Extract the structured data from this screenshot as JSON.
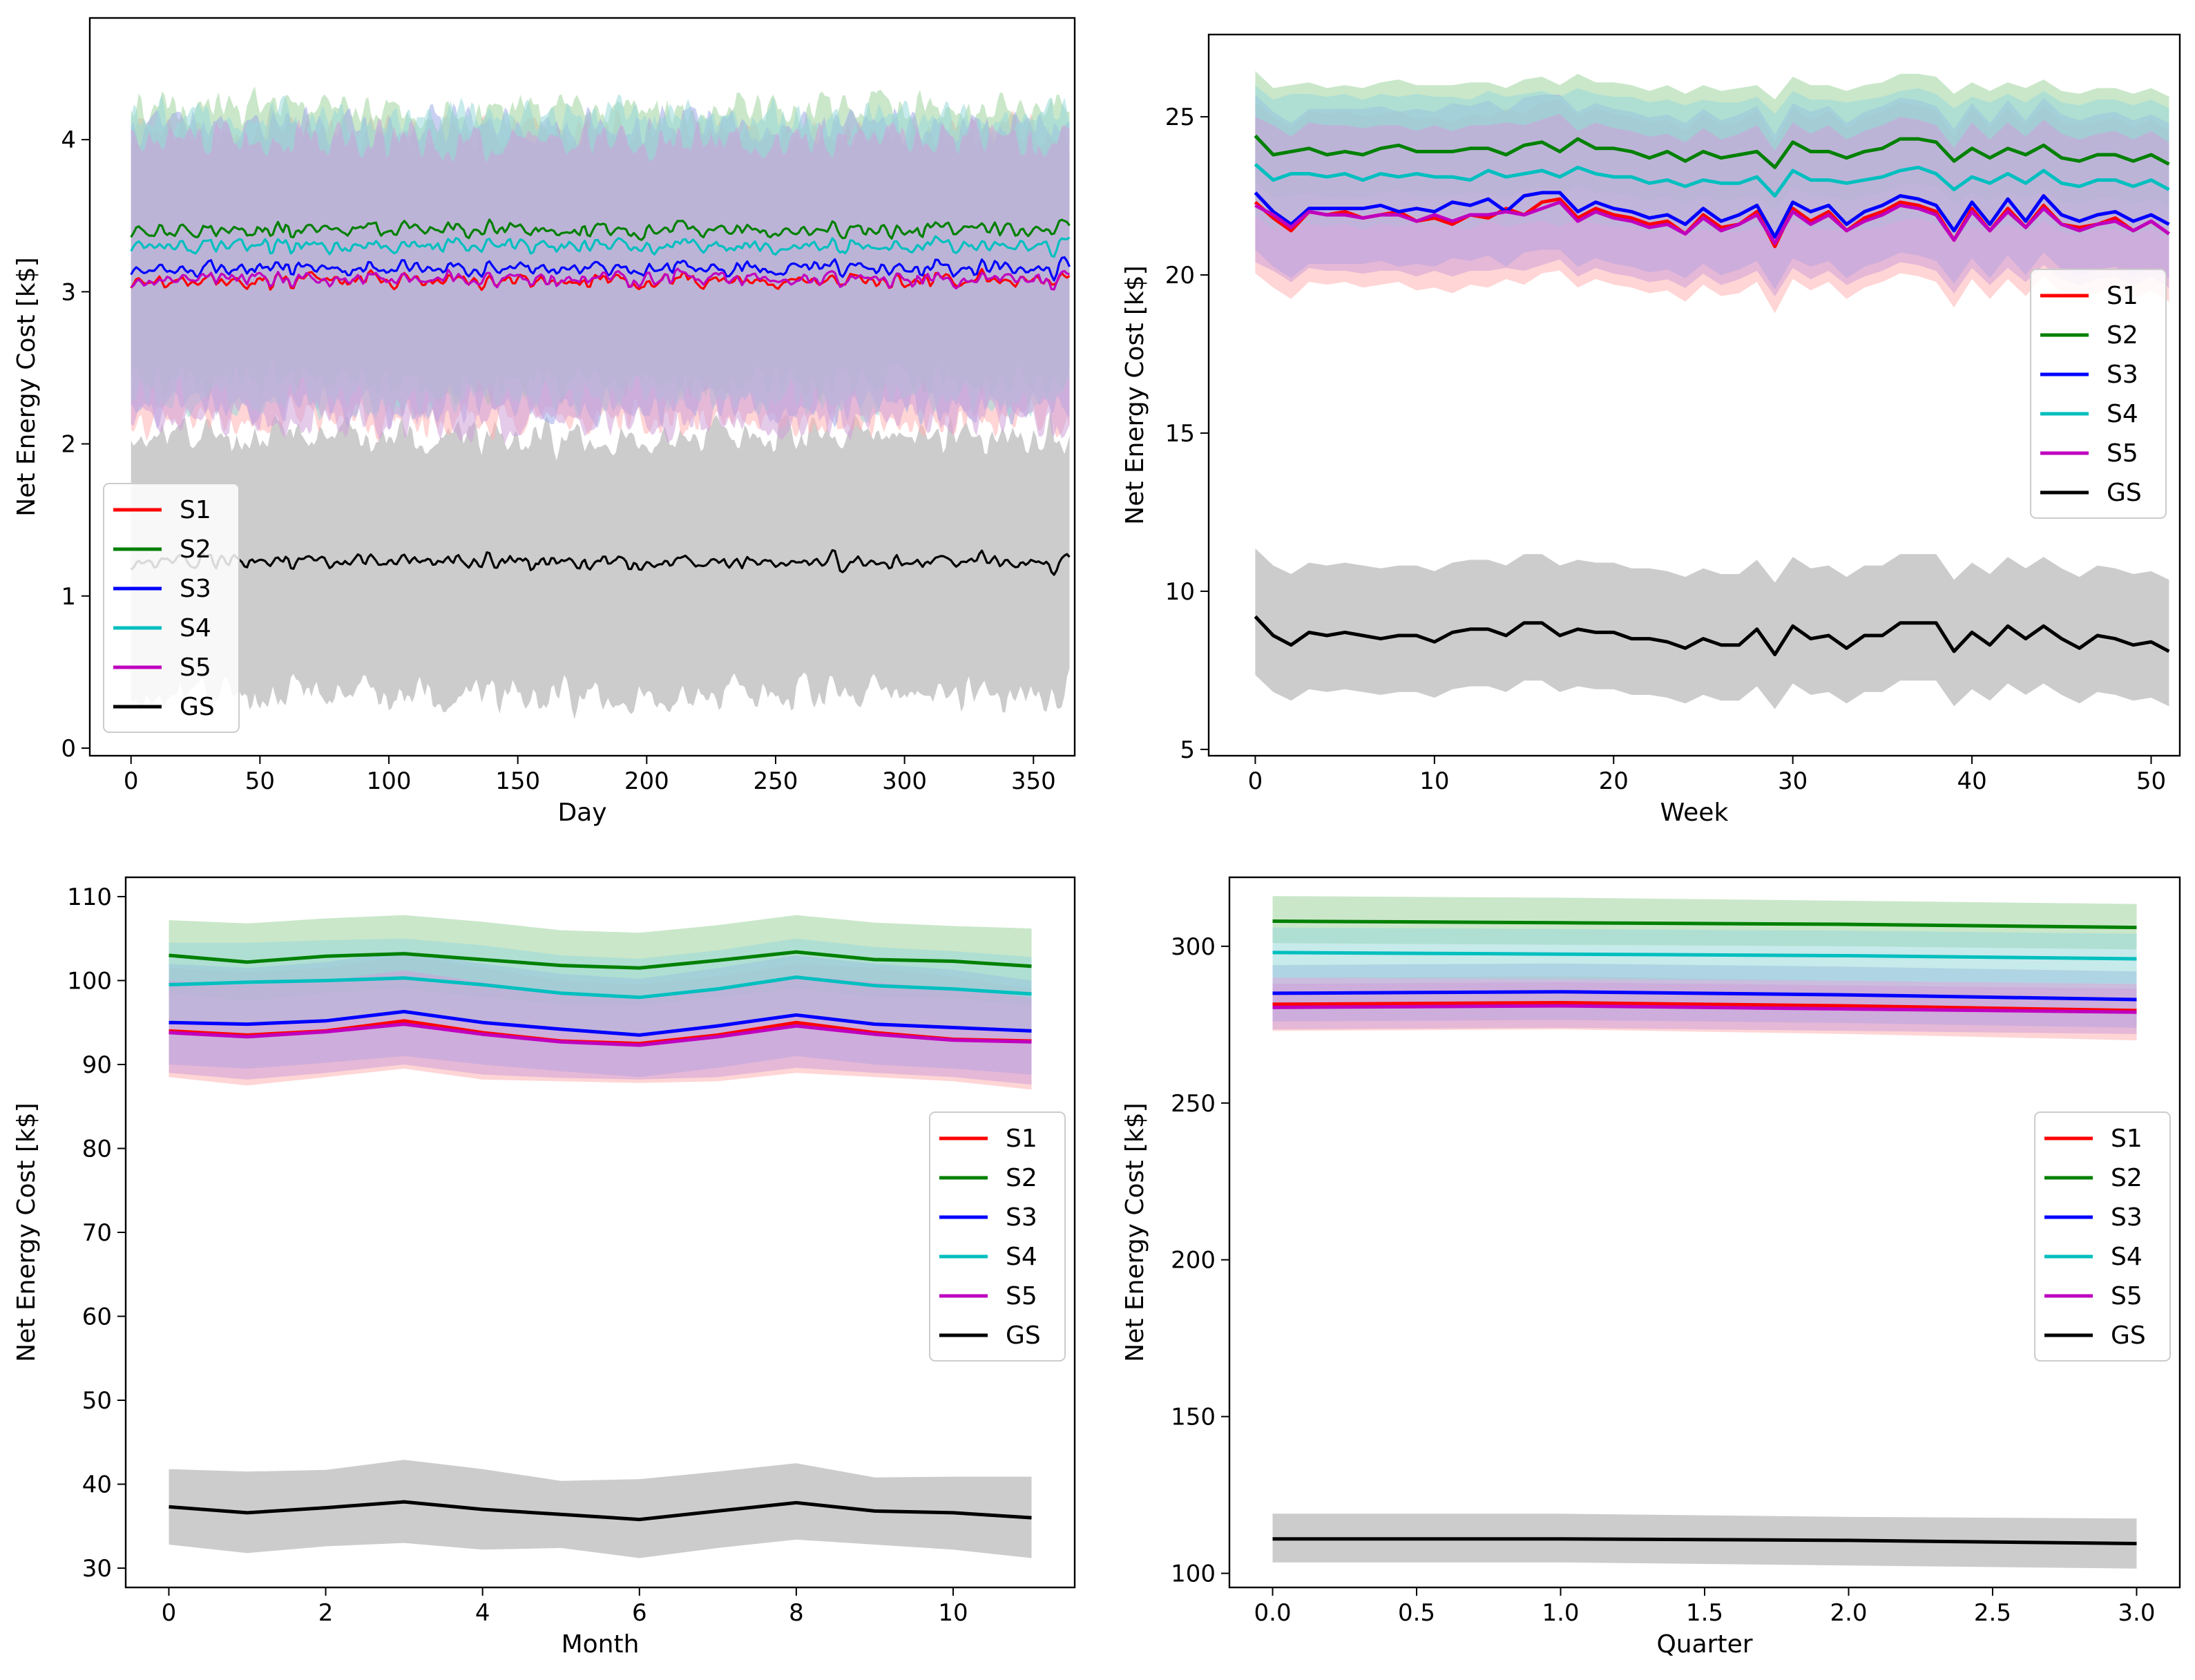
{
  "colors": {
    "S1": "#ff0000",
    "S2": "#008000",
    "S3": "#0000ff",
    "S4": "#00bfbf",
    "S5": "#bf00bf",
    "GS": "#000000",
    "band_S1": "#ffb3b3",
    "band_S2": "#9fd49f",
    "band_S3": "#9fa9e6",
    "band_S4": "#99d9d9",
    "band_S5": "#cfa0d8",
    "band_GS": "#cccccc"
  },
  "chart_data": [
    {
      "type": "line",
      "xlabel": "Day",
      "ylabel": "Net Energy Cost [k$]",
      "xlim": [
        -16,
        366
      ],
      "ylim": [
        -0.05,
        4.8
      ],
      "xticks": [
        0,
        50,
        100,
        150,
        200,
        250,
        300,
        350
      ],
      "yticks": [
        0,
        1,
        2,
        3,
        4
      ],
      "x_range": [
        0,
        364
      ],
      "legend_entries": [
        "S1",
        "S2",
        "S3",
        "S4",
        "S5",
        "GS"
      ],
      "legend_loc": "lower left",
      "series": [
        {
          "name": "S1",
          "mean": 3.07,
          "noise": 0.07,
          "band": [
            2.2,
            4.05
          ]
        },
        {
          "name": "S2",
          "mean": 3.4,
          "noise": 0.07,
          "band": [
            2.45,
            4.2
          ]
        },
        {
          "name": "S3",
          "mean": 3.15,
          "noise": 0.07,
          "band": [
            2.3,
            4.1
          ]
        },
        {
          "name": "S4",
          "mean": 3.3,
          "noise": 0.07,
          "band": [
            2.35,
            4.15
          ]
        },
        {
          "name": "S5",
          "mean": 3.08,
          "noise": 0.07,
          "band": [
            2.2,
            4.0
          ]
        },
        {
          "name": "GS",
          "mean": 1.22,
          "noise": 0.07,
          "band": [
            0.4,
            2.05
          ]
        }
      ]
    },
    {
      "type": "line",
      "xlabel": "Week",
      "ylabel": "Net Energy Cost [k$]",
      "xlim": [
        -2.6,
        51.6
      ],
      "ylim": [
        4.8,
        27.6
      ],
      "xticks": [
        0,
        10,
        20,
        30,
        40,
        50
      ],
      "yticks": [
        5,
        10,
        15,
        20,
        25
      ],
      "legend_entries": [
        "S1",
        "S2",
        "S3",
        "S4",
        "S5",
        "GS"
      ],
      "legend_loc": "center right",
      "x": [
        0,
        1,
        2,
        3,
        4,
        5,
        6,
        7,
        8,
        9,
        10,
        11,
        12,
        13,
        14,
        15,
        16,
        17,
        18,
        19,
        20,
        21,
        22,
        23,
        24,
        25,
        26,
        27,
        28,
        29,
        30,
        31,
        32,
        33,
        34,
        35,
        36,
        37,
        38,
        39,
        40,
        41,
        42,
        43,
        44,
        45,
        46,
        47,
        48,
        49,
        50,
        51
      ],
      "series": [
        {
          "name": "S1",
          "values": [
            22.3,
            21.8,
            21.4,
            22.0,
            21.9,
            22.0,
            21.8,
            21.9,
            22.0,
            21.7,
            21.8,
            21.6,
            21.9,
            21.8,
            22.1,
            21.9,
            22.3,
            22.4,
            21.8,
            22.1,
            21.9,
            21.8,
            21.6,
            21.7,
            21.3,
            21.9,
            21.5,
            21.6,
            22.0,
            20.9,
            22.1,
            21.7,
            22.0,
            21.4,
            21.8,
            22.0,
            22.3,
            22.2,
            22.0,
            21.1,
            22.1,
            21.4,
            22.1,
            21.5,
            22.2,
            21.6,
            21.5,
            21.6,
            21.8,
            21.4,
            21.7,
            21.3
          ],
          "band": [
            19.6,
            25.0
          ]
        },
        {
          "name": "S2",
          "values": [
            24.4,
            23.8,
            23.9,
            24.0,
            23.8,
            23.9,
            23.8,
            24.0,
            24.1,
            23.9,
            23.9,
            23.9,
            24.0,
            24.0,
            23.8,
            24.1,
            24.2,
            23.9,
            24.3,
            24.0,
            24.0,
            23.9,
            23.7,
            23.9,
            23.6,
            23.9,
            23.7,
            23.8,
            23.9,
            23.4,
            24.2,
            23.9,
            23.9,
            23.7,
            23.9,
            24.0,
            24.3,
            24.3,
            24.2,
            23.6,
            24.0,
            23.7,
            24.0,
            23.8,
            24.1,
            23.7,
            23.6,
            23.8,
            23.8,
            23.6,
            23.8,
            23.5
          ],
          "band": [
            22.5,
            26.0
          ]
        },
        {
          "name": "S3",
          "values": [
            22.6,
            22.0,
            21.6,
            22.1,
            22.1,
            22.1,
            22.1,
            22.2,
            22.0,
            22.1,
            22.0,
            22.3,
            22.2,
            22.4,
            22.0,
            22.5,
            22.6,
            22.6,
            22.0,
            22.3,
            22.1,
            22.0,
            21.8,
            21.9,
            21.6,
            22.1,
            21.7,
            21.9,
            22.2,
            21.2,
            22.3,
            22.0,
            22.2,
            21.6,
            22.0,
            22.2,
            22.5,
            22.4,
            22.2,
            21.4,
            22.3,
            21.6,
            22.4,
            21.7,
            22.5,
            21.9,
            21.7,
            21.9,
            22.0,
            21.7,
            21.9,
            21.6
          ],
          "band": [
            20.3,
            25.2
          ]
        },
        {
          "name": "S4",
          "values": [
            23.5,
            23.0,
            23.2,
            23.2,
            23.1,
            23.2,
            23.0,
            23.2,
            23.1,
            23.2,
            23.1,
            23.1,
            23.0,
            23.3,
            23.1,
            23.2,
            23.3,
            23.1,
            23.4,
            23.2,
            23.1,
            23.1,
            22.9,
            23.0,
            22.8,
            23.0,
            22.9,
            22.9,
            23.1,
            22.5,
            23.3,
            23.0,
            23.0,
            22.9,
            23.0,
            23.1,
            23.3,
            23.4,
            23.2,
            22.7,
            23.1,
            22.9,
            23.2,
            22.9,
            23.3,
            22.9,
            22.8,
            23.0,
            23.0,
            22.8,
            23.0,
            22.7
          ],
          "band": [
            21.5,
            25.6
          ]
        },
        {
          "name": "S5",
          "values": [
            22.2,
            21.9,
            21.5,
            22.0,
            21.9,
            21.9,
            21.8,
            21.9,
            21.9,
            21.7,
            21.9,
            21.7,
            21.9,
            21.9,
            22.0,
            21.9,
            22.1,
            22.3,
            21.7,
            22.0,
            21.8,
            21.7,
            21.5,
            21.6,
            21.3,
            21.8,
            21.4,
            21.6,
            21.9,
            21.0,
            22.0,
            21.6,
            21.9,
            21.4,
            21.7,
            21.9,
            22.2,
            22.1,
            21.9,
            21.1,
            22.0,
            21.4,
            22.0,
            21.5,
            22.1,
            21.6,
            21.4,
            21.6,
            21.7,
            21.4,
            21.7,
            21.3
          ],
          "band": [
            20.0,
            24.6
          ]
        },
        {
          "name": "GS",
          "values": [
            9.2,
            8.6,
            8.3,
            8.7,
            8.6,
            8.7,
            8.6,
            8.5,
            8.6,
            8.6,
            8.4,
            8.7,
            8.8,
            8.8,
            8.6,
            9.0,
            9.0,
            8.6,
            8.8,
            8.7,
            8.7,
            8.5,
            8.5,
            8.4,
            8.2,
            8.5,
            8.3,
            8.3,
            8.8,
            8.0,
            8.9,
            8.5,
            8.6,
            8.2,
            8.6,
            8.6,
            9.0,
            9.0,
            9.0,
            8.1,
            8.7,
            8.3,
            8.9,
            8.5,
            8.9,
            8.5,
            8.2,
            8.6,
            8.5,
            8.3,
            8.4,
            8.1
          ],
          "band": [
            6.8,
            10.8
          ]
        }
      ]
    },
    {
      "type": "line",
      "xlabel": "Month",
      "ylabel": "Net Energy Cost [k$]",
      "xlim": [
        -0.55,
        11.55
      ],
      "ylim": [
        27.7,
        112.3
      ],
      "xticks": [
        0,
        2,
        4,
        6,
        8,
        10
      ],
      "yticks": [
        30,
        40,
        50,
        60,
        70,
        80,
        90,
        100,
        110
      ],
      "legend_entries": [
        "S1",
        "S2",
        "S3",
        "S4",
        "S5",
        "GS"
      ],
      "legend_loc": "center right",
      "x": [
        0,
        1,
        2,
        3,
        4,
        5,
        6,
        7,
        8,
        9,
        10,
        11
      ],
      "series": [
        {
          "name": "S1",
          "values": [
            94.0,
            93.5,
            94.0,
            95.2,
            93.8,
            92.8,
            92.5,
            93.5,
            95.0,
            93.8,
            93.0,
            92.8
          ],
          "band_lower": [
            88.5,
            87.5,
            88.5,
            89.5,
            88.2,
            88.0,
            87.8,
            88.0,
            89.0,
            88.5,
            88.0,
            87.0
          ],
          "band_upper": [
            101.5,
            101.0,
            101.5,
            103.0,
            101.5,
            100.0,
            99.5,
            100.5,
            102.0,
            101.5,
            100.5,
            99.0
          ]
        },
        {
          "name": "S2",
          "values": [
            103.0,
            102.2,
            102.9,
            103.2,
            102.5,
            101.8,
            101.5,
            102.4,
            103.4,
            102.5,
            102.3,
            101.7
          ],
          "band_lower": [
            98.5,
            97.5,
            98.5,
            99.0,
            98.0,
            97.2,
            97.0,
            98.0,
            99.0,
            98.0,
            97.8,
            97.0
          ],
          "band_upper": [
            107.2,
            106.8,
            107.4,
            107.8,
            107.0,
            106.0,
            105.7,
            106.6,
            107.8,
            106.9,
            106.5,
            106.2
          ]
        },
        {
          "name": "S3",
          "values": [
            95.0,
            94.8,
            95.2,
            96.3,
            95.0,
            94.2,
            93.5,
            94.6,
            95.9,
            94.8,
            94.4,
            94.0
          ],
          "band_lower": [
            90.0,
            89.5,
            90.2,
            91.0,
            90.0,
            89.2,
            88.5,
            89.6,
            91.0,
            90.0,
            89.5,
            88.8
          ],
          "band_upper": [
            102.0,
            101.5,
            102.2,
            103.5,
            102.0,
            100.8,
            100.2,
            101.5,
            103.0,
            102.0,
            101.3,
            100.0
          ]
        },
        {
          "name": "S4",
          "values": [
            99.5,
            99.8,
            100.0,
            100.3,
            99.5,
            98.5,
            98.0,
            99.0,
            100.4,
            99.4,
            99.0,
            98.4
          ],
          "band_lower": [
            95.0,
            95.0,
            95.3,
            95.8,
            95.0,
            94.0,
            93.5,
            94.5,
            95.9,
            95.0,
            94.5,
            93.5
          ],
          "band_upper": [
            104.5,
            104.5,
            104.8,
            105.0,
            104.2,
            103.0,
            102.6,
            103.6,
            105.0,
            104.0,
            103.5,
            102.8
          ]
        },
        {
          "name": "S5",
          "values": [
            93.8,
            93.3,
            93.9,
            94.8,
            93.6,
            92.7,
            92.3,
            93.3,
            94.6,
            93.6,
            92.9,
            92.7
          ],
          "band_lower": [
            89.0,
            88.2,
            89.0,
            90.0,
            88.8,
            88.4,
            88.2,
            88.5,
            89.6,
            89.0,
            88.5,
            87.6
          ],
          "band_upper": [
            100.0,
            99.5,
            100.0,
            101.2,
            99.8,
            98.5,
            98.0,
            99.0,
            100.6,
            99.8,
            99.0,
            98.0
          ]
        },
        {
          "name": "GS",
          "values": [
            37.3,
            36.6,
            37.2,
            37.9,
            37.0,
            36.4,
            35.8,
            36.8,
            37.8,
            36.8,
            36.6,
            36.0
          ],
          "band_lower": [
            32.8,
            31.8,
            32.6,
            33.0,
            32.2,
            32.4,
            31.2,
            32.4,
            33.4,
            32.8,
            32.2,
            31.2
          ],
          "band_upper": [
            41.8,
            41.5,
            41.7,
            42.9,
            41.8,
            40.4,
            40.6,
            41.5,
            42.5,
            40.8,
            40.9,
            40.9
          ]
        }
      ]
    },
    {
      "type": "line",
      "xlabel": "Quarter",
      "ylabel": "Net Energy Cost [k$]",
      "xlim": [
        -0.15,
        3.15
      ],
      "ylim": [
        95.5,
        322.0
      ],
      "xticks": [
        "0.0",
        "0.5",
        "1.0",
        "1.5",
        "2.0",
        "2.5",
        "3.0"
      ],
      "yticks": [
        100,
        150,
        200,
        250,
        300
      ],
      "legend_entries": [
        "S1",
        "S2",
        "S3",
        "S4",
        "S5",
        "GS"
      ],
      "legend_loc": "center right",
      "x": [
        0,
        1,
        2,
        3
      ],
      "series": [
        {
          "name": "S1",
          "values": [
            281.5,
            282.0,
            281.0,
            279.5
          ],
          "band_lower": [
            273.0,
            273.5,
            272.0,
            270.0
          ],
          "band_upper": [
            290.0,
            290.5,
            289.0,
            288.0
          ]
        },
        {
          "name": "S2",
          "values": [
            308.0,
            307.5,
            307.0,
            306.0
          ],
          "band_lower": [
            301.0,
            300.5,
            300.0,
            299.0
          ],
          "band_upper": [
            316.0,
            315.5,
            314.5,
            313.5
          ]
        },
        {
          "name": "S3",
          "values": [
            285.0,
            285.5,
            284.5,
            283.0
          ],
          "band_lower": [
            276.0,
            276.5,
            275.5,
            274.0
          ],
          "band_upper": [
            294.0,
            294.5,
            293.5,
            292.0
          ]
        },
        {
          "name": "S4",
          "values": [
            298.0,
            297.5,
            297.0,
            296.0
          ],
          "band_lower": [
            290.0,
            289.5,
            289.0,
            288.0
          ],
          "band_upper": [
            306.0,
            305.5,
            305.0,
            304.0
          ]
        },
        {
          "name": "S5",
          "values": [
            280.5,
            281.0,
            280.0,
            279.0
          ],
          "band_lower": [
            273.5,
            274.0,
            273.0,
            272.0
          ],
          "band_upper": [
            288.0,
            288.5,
            287.5,
            286.5
          ]
        },
        {
          "name": "GS",
          "values": [
            111.0,
            111.0,
            110.5,
            109.5
          ],
          "band_lower": [
            103.5,
            103.5,
            102.5,
            101.5
          ],
          "band_upper": [
            119.0,
            119.0,
            118.0,
            117.5
          ]
        }
      ]
    }
  ]
}
